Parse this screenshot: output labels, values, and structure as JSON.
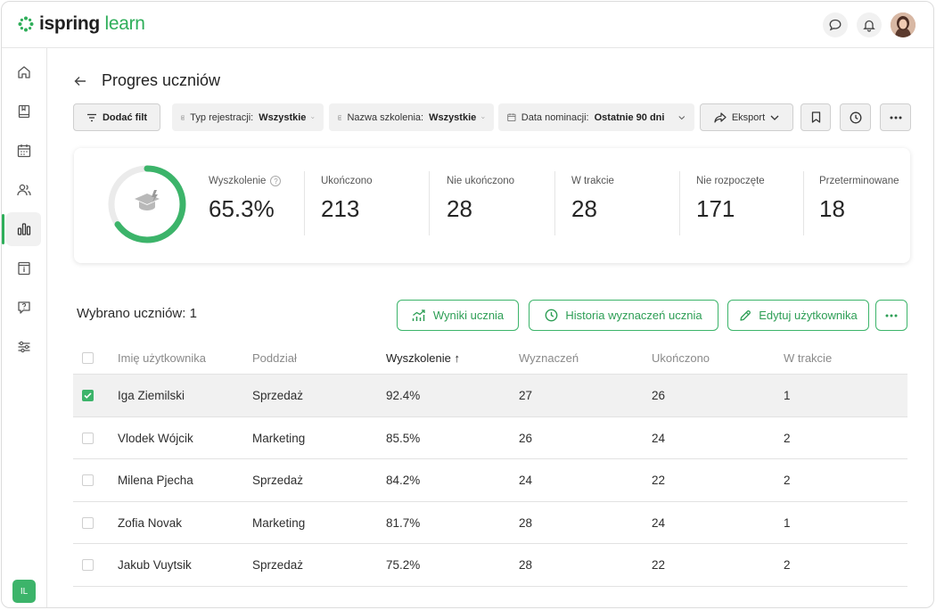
{
  "brand": {
    "logo_a": "ispring",
    "logo_b": "learn",
    "accent": "#3cb46a"
  },
  "header": {
    "icons": [
      "chat-icon",
      "bell-icon"
    ],
    "user_badge": "IL"
  },
  "sidebar": {
    "items": [
      "home-icon",
      "book-icon",
      "calendar-icon",
      "users-icon",
      "reports-icon",
      "info-icon",
      "help-icon",
      "settings-icon"
    ],
    "active": "reports-icon"
  },
  "page": {
    "title": "Progres uczniów"
  },
  "filters": {
    "add": "Dodać filt",
    "reg_label": "Typ rejestracji:",
    "reg_value": "Wszystkie",
    "course_label": "Nazwa szkolenia:",
    "course_value": "Wszystkie",
    "date_label": "Data nominacji:",
    "date_value": "Ostatnie 90 dni",
    "export": "Eksport"
  },
  "stats": {
    "progress_percent": 65.3,
    "items": [
      {
        "label": "Wyszkolenie",
        "value": "65.3%"
      },
      {
        "label": "Ukończono",
        "value": "213"
      },
      {
        "label": "Nie ukończono",
        "value": "28"
      },
      {
        "label": "W trakcie",
        "value": "28"
      },
      {
        "label": "Nie rozpoczęte",
        "value": "171"
      },
      {
        "label": "Przeterminowane",
        "value": "18"
      }
    ]
  },
  "selection": {
    "label": "Wybrano uczniów: 1",
    "results": "Wyniki ucznia",
    "history": "Historia wyznaczeń ucznia",
    "edit": "Edytuj użytkownika"
  },
  "table": {
    "columns": [
      "Imię użytkownika",
      "Poddział",
      "Wyszkolenie",
      "Wyznaczeń",
      "Ukończono",
      "W trakcie"
    ],
    "sort_arrow": "↑",
    "rows": [
      {
        "name": "Iga Ziemilski",
        "division": "Sprzedaż",
        "progress": "92.4%",
        "assigned": "27",
        "completed": "26",
        "in_progress": "1",
        "selected": true
      },
      {
        "name": "Vlodek Wójcik",
        "division": "Marketing",
        "progress": "85.5%",
        "assigned": "26",
        "completed": "24",
        "in_progress": "2",
        "selected": false
      },
      {
        "name": "Milena Pjecha",
        "division": "Sprzedaż",
        "progress": "84.2%",
        "assigned": "24",
        "completed": "22",
        "in_progress": "2",
        "selected": false
      },
      {
        "name": "Zofia Novak",
        "division": "Marketing",
        "progress": "81.7%",
        "assigned": "28",
        "completed": "24",
        "in_progress": "1",
        "selected": false
      },
      {
        "name": "Jakub Vuytsik",
        "division": "Sprzedaż",
        "progress": "75.2%",
        "assigned": "28",
        "completed": "22",
        "in_progress": "2",
        "selected": false
      }
    ]
  }
}
